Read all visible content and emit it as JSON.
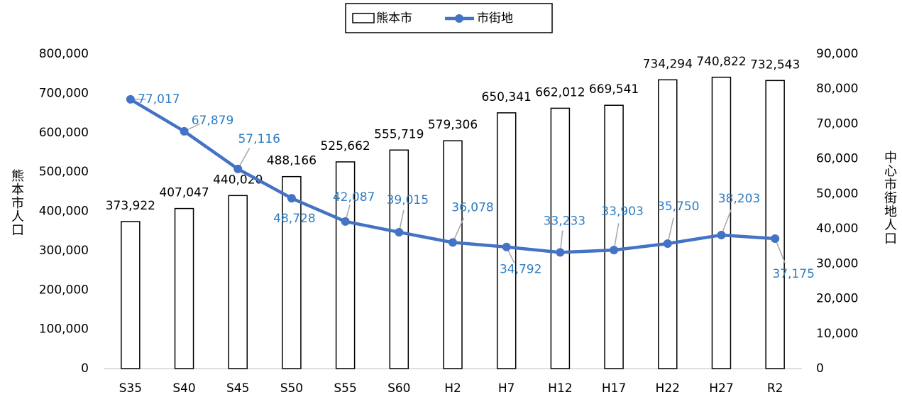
{
  "chart_data": {
    "type": "bar_line",
    "categories": [
      "S35",
      "S40",
      "S45",
      "S50",
      "S55",
      "S60",
      "H2",
      "H7",
      "H12",
      "H17",
      "H22",
      "H27",
      "R2"
    ],
    "series": [
      {
        "name": "熊本市",
        "type": "bar",
        "color": "#ffffff",
        "values": [
          373922,
          407047,
          440020,
          488166,
          525662,
          555719,
          579306,
          650341,
          662012,
          669541,
          734294,
          740822,
          732543
        ],
        "value_labels": [
          "373,922",
          "407,047",
          "440,020",
          "488,166",
          "525,662",
          "555,719",
          "579,306",
          "650,341",
          "662,012",
          "669,541",
          "734,294",
          "740,822",
          "732,543"
        ]
      },
      {
        "name": "市街地",
        "type": "line",
        "axis": "y2",
        "color": "#4472c4",
        "values": [
          77017,
          67879,
          57116,
          48728,
          42087,
          39015,
          36078,
          34792,
          33233,
          33903,
          35750,
          38203,
          37175
        ],
        "value_labels": [
          "77,017",
          "67,879",
          "57,116",
          "48,728",
          "42,087",
          "39,015",
          "36,078",
          "34,792",
          "33,233",
          "33,903",
          "35,750",
          "38,203",
          "37,175"
        ]
      }
    ],
    "ylabel": "熊本市人口",
    "y2label": "中心市街地人口",
    "ylim": [
      0,
      800000
    ],
    "yticks": [
      0,
      {
        "value": 100000,
        "label": "100,000"
      },
      {
        "value": 200000,
        "label": "200,000"
      },
      {
        "value": 300000,
        "label": "300,000"
      },
      {
        "value": 400000,
        "label": "400,000"
      },
      {
        "value": 500000,
        "label": "500,000"
      },
      {
        "value": 600000,
        "label": "600,000"
      },
      {
        "value": 700000,
        "label": "700,000"
      },
      {
        "value": 800000,
        "label": "800,000"
      }
    ],
    "y2lim": [
      0,
      90000
    ],
    "y2ticks": [
      0,
      {
        "value": 10000,
        "label": "10,000"
      },
      {
        "value": 20000,
        "label": "20,000"
      },
      {
        "value": 30000,
        "label": "30,000"
      },
      {
        "value": 40000,
        "label": "40,000"
      },
      {
        "value": 50000,
        "label": "50,000"
      },
      {
        "value": 60000,
        "label": "60,000"
      },
      {
        "value": 70000,
        "label": "70,000"
      },
      {
        "value": 80000,
        "label": "80,000"
      },
      {
        "value": 90000,
        "label": "90,000"
      }
    ],
    "grid": false,
    "legend": "top"
  }
}
